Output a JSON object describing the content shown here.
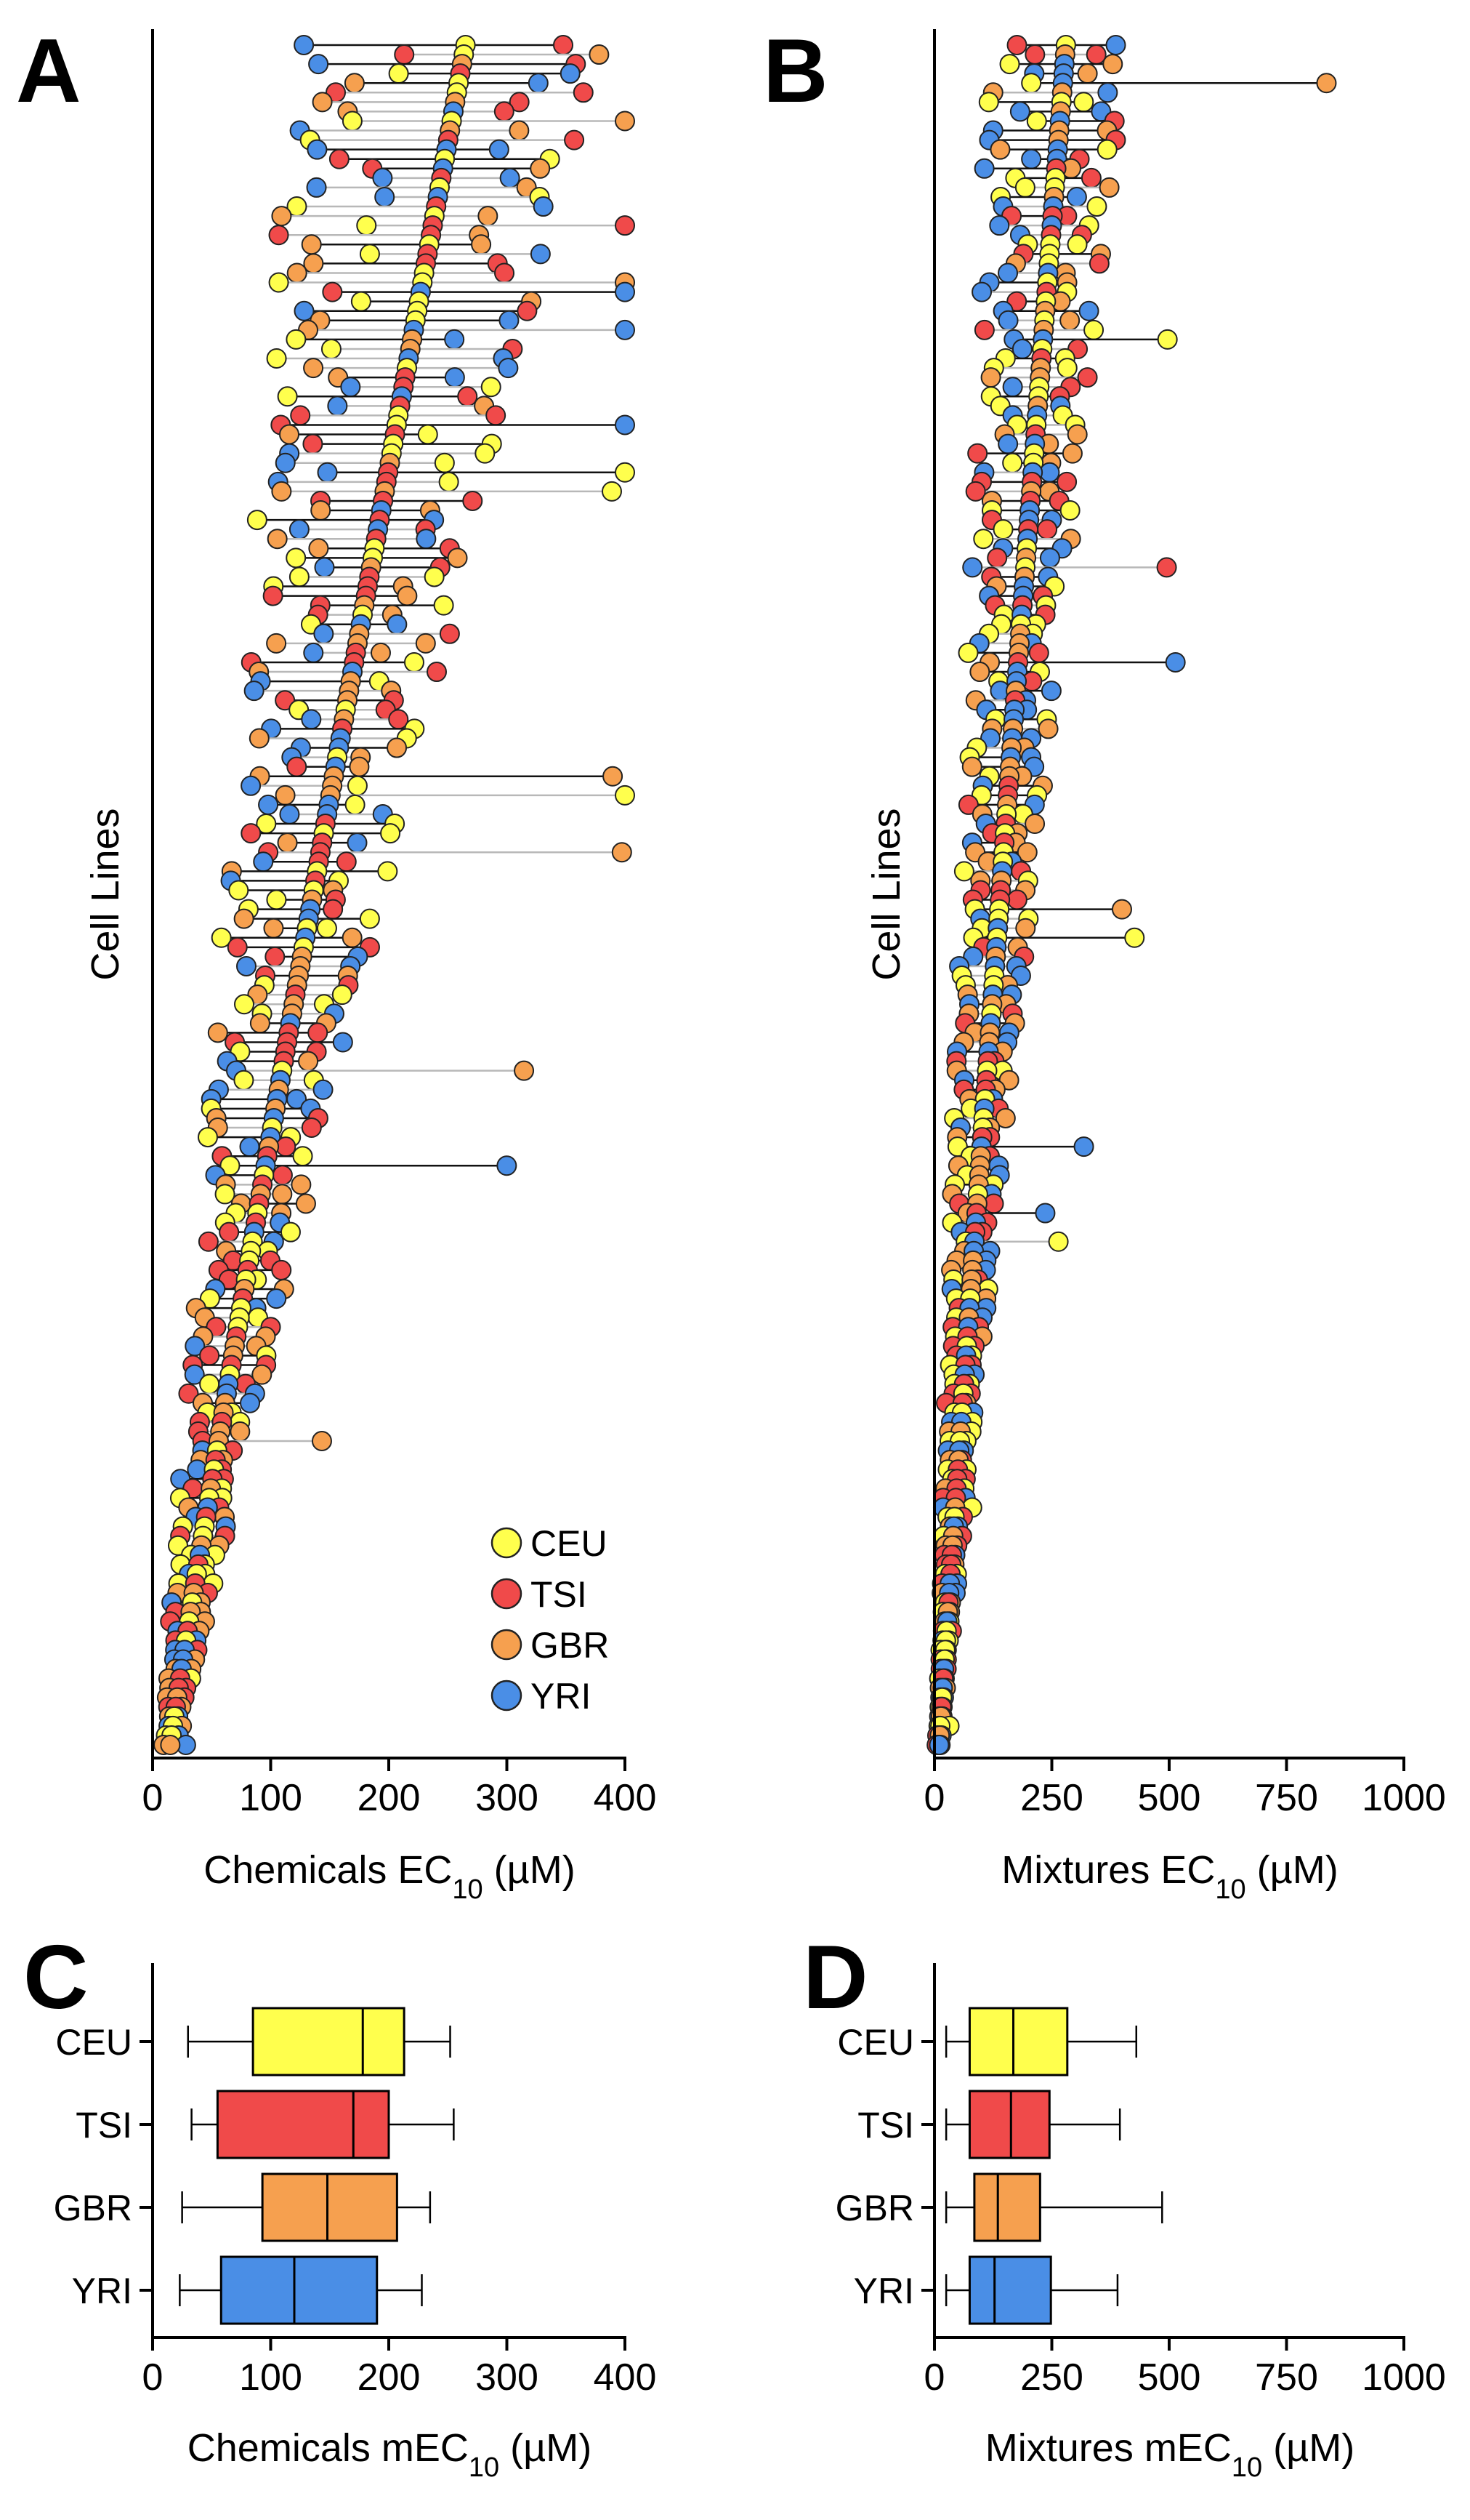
{
  "colors": {
    "CEU": "#ffff4d",
    "TSI": "#f04a4a",
    "GBR": "#f6a04f",
    "YRI": "#4a8ee6",
    "stroke": "#222222",
    "gray_line": "#b8b8b8"
  },
  "chart_data": [
    {
      "panel": "A",
      "type": "scatter",
      "title": "",
      "ylabel": "Cell Lines",
      "xlabel_main": "Chemicals EC",
      "xlabel_sub": "10",
      "xlabel_unit": " (µM)",
      "xlim": [
        0,
        400
      ],
      "xticks": [
        0,
        100,
        200,
        300,
        400
      ],
      "xtick_labels": [
        "0",
        "100",
        "200",
        "300",
        "400"
      ],
      "legend": [
        "CEU",
        "TSI",
        "GBR",
        "YRI"
      ],
      "legend_position": "bottom-right",
      "n_rows": 180,
      "median_start": 265,
      "median_end": 15,
      "spread": 0.55,
      "seed": 7
    },
    {
      "panel": "B",
      "type": "scatter",
      "title": "",
      "ylabel": "Cell Lines",
      "xlabel_main": "Mixtures EC",
      "xlabel_sub": "10",
      "xlabel_unit": " (µM)",
      "xlim": [
        0,
        1000
      ],
      "xticks": [
        0,
        250,
        500,
        750,
        1000
      ],
      "xtick_labels": [
        "0",
        "250",
        "500",
        "750",
        "1000"
      ],
      "n_rows": 180,
      "median_start": 280,
      "median_end": 10,
      "spread": 0.6,
      "seed": 13
    },
    {
      "panel": "C",
      "type": "box",
      "xlabel_main": "Chemicals mEC",
      "xlabel_sub": "10",
      "xlabel_unit": " (µM)",
      "xlim": [
        0,
        400
      ],
      "xticks": [
        0,
        100,
        200,
        300,
        400
      ],
      "xtick_labels": [
        "0",
        "100",
        "200",
        "300",
        "400"
      ],
      "categories": [
        "CEU",
        "TSI",
        "GBR",
        "YRI"
      ],
      "boxes": [
        {
          "name": "CEU",
          "min": 30,
          "q1": 85,
          "median": 178,
          "q3": 213,
          "max": 252
        },
        {
          "name": "TSI",
          "min": 33,
          "q1": 55,
          "median": 170,
          "q3": 200,
          "max": 255
        },
        {
          "name": "GBR",
          "min": 25,
          "q1": 93,
          "median": 148,
          "q3": 207,
          "max": 235
        },
        {
          "name": "YRI",
          "min": 23,
          "q1": 58,
          "median": 120,
          "q3": 190,
          "max": 228
        }
      ]
    },
    {
      "panel": "D",
      "type": "box",
      "xlabel_main": "Mixtures mEC",
      "xlabel_sub": "10",
      "xlabel_unit": " (µM)",
      "xlim": [
        0,
        1000
      ],
      "xticks": [
        0,
        250,
        500,
        750,
        1000
      ],
      "xtick_labels": [
        "0",
        "250",
        "500",
        "750",
        "1000"
      ],
      "categories": [
        "CEU",
        "TSI",
        "GBR",
        "YRI"
      ],
      "boxes": [
        {
          "name": "CEU",
          "min": 25,
          "q1": 75,
          "median": 168,
          "q3": 283,
          "max": 430
        },
        {
          "name": "TSI",
          "min": 25,
          "q1": 75,
          "median": 163,
          "q3": 245,
          "max": 395
        },
        {
          "name": "GBR",
          "min": 25,
          "q1": 85,
          "median": 135,
          "q3": 225,
          "max": 485
        },
        {
          "name": "YRI",
          "min": 25,
          "q1": 75,
          "median": 128,
          "q3": 248,
          "max": 390
        }
      ]
    }
  ]
}
